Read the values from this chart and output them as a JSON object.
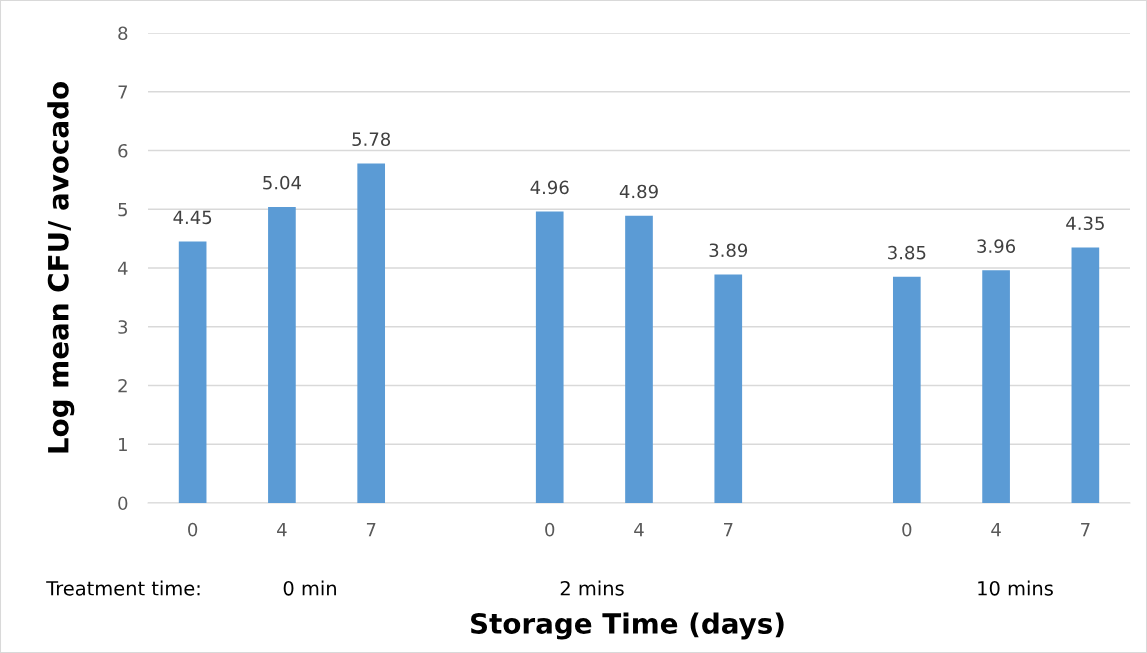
{
  "chart_data": {
    "type": "bar",
    "ylabel": "Log mean CFU/ avocado",
    "xlabel": "Storage Time (days)",
    "categories": [
      "0",
      "4",
      "7",
      null,
      "0",
      "4",
      "7",
      null,
      "0",
      "4",
      "7"
    ],
    "values": [
      4.45,
      5.04,
      5.78,
      null,
      4.96,
      4.89,
      3.89,
      null,
      3.85,
      3.96,
      4.35
    ],
    "color": "#5b9bd5",
    "ylim": [
      0,
      8
    ],
    "yticks": [
      0,
      1,
      2,
      3,
      4,
      5,
      6,
      7,
      8
    ],
    "grid": "y",
    "data_labels": true,
    "legend": false,
    "annotations": [
      "Treatment time:",
      "0 min",
      "2 mins",
      "10 mins"
    ]
  }
}
